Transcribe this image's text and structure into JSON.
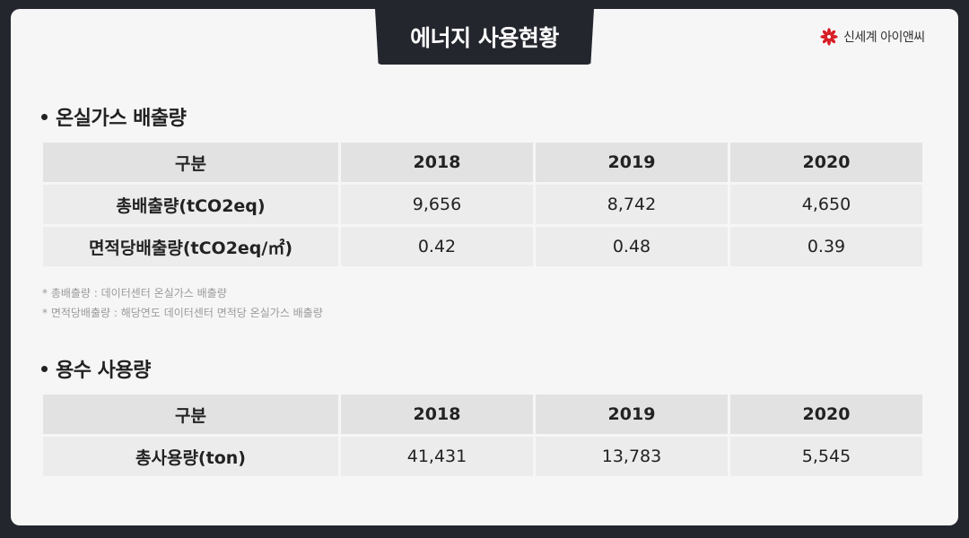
{
  "header": {
    "title": "에너지 사용현황",
    "brand_name": "신세계 아이앤씨",
    "brand_color": "#d81f26"
  },
  "ghg": {
    "section_title": "온실가스 배출량",
    "columns": [
      "구분",
      "2018",
      "2019",
      "2020"
    ],
    "rows": [
      {
        "label": "총배출량(tCO2eq)",
        "values": [
          "9,656",
          "8,742",
          "4,650"
        ]
      },
      {
        "label": "면적당배출량(tCO2eq/㎡)",
        "values": [
          "0.42",
          "0.48",
          "0.39"
        ]
      }
    ],
    "notes": [
      "* 총배출량 : 데이터센터 온실가스 배출량",
      "* 면적당배출량 : 해당연도 데이터센터 면적당 온실가스 배출량"
    ]
  },
  "water": {
    "section_title": "용수 사용량",
    "columns": [
      "구분",
      "2018",
      "2019",
      "2020"
    ],
    "rows": [
      {
        "label": "총사용량(ton)",
        "values": [
          "41,431",
          "13,783",
          "5,545"
        ]
      }
    ]
  }
}
